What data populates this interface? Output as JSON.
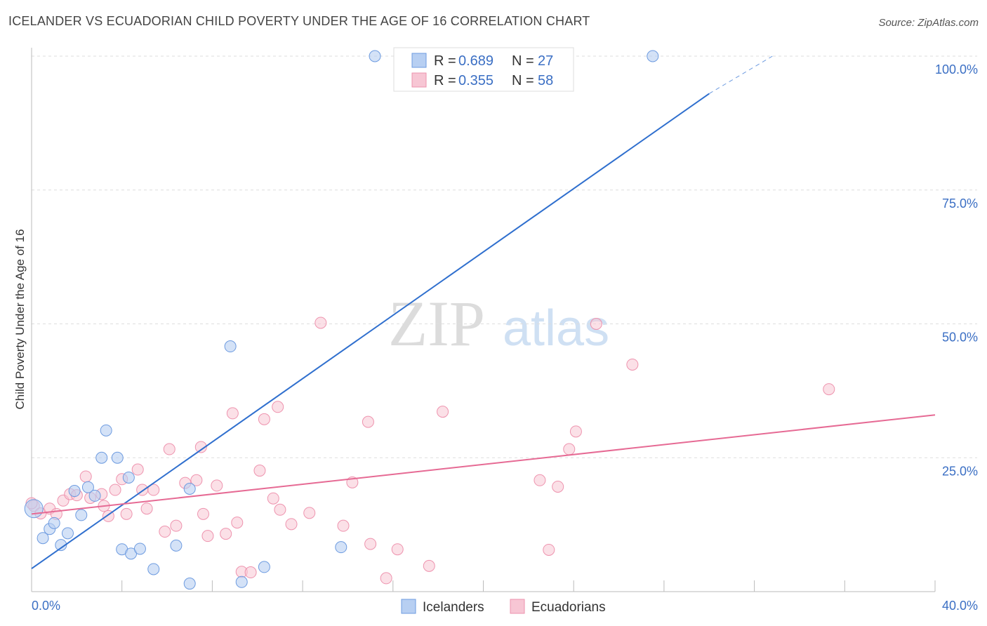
{
  "header": {
    "title": "ICELANDER VS ECUADORIAN CHILD POVERTY UNDER THE AGE OF 16 CORRELATION CHART",
    "source": "Source: ZipAtlas.com"
  },
  "watermark": {
    "zip": "ZIP",
    "atlas": "atlas"
  },
  "colors": {
    "blue_fill": "#b7cff2",
    "blue_stroke": "#6d9be0",
    "blue_line": "#2f6fce",
    "pink_fill": "#f7c6d4",
    "pink_stroke": "#ee93ae",
    "pink_line": "#e66a94",
    "grid": "#dddddd",
    "tick_text": "#3b6fc4"
  },
  "chart_data": {
    "type": "scatter",
    "title": "ICELANDER VS ECUADORIAN CHILD POVERTY UNDER THE AGE OF 16 CORRELATION CHART",
    "xlabel": "",
    "ylabel": "Child Poverty Under the Age of 16",
    "xlim": [
      0,
      40
    ],
    "ylim": [
      0,
      100
    ],
    "x_tick_labels": [
      "0.0%",
      "40.0%"
    ],
    "y_ticks": [
      25,
      50,
      75,
      100
    ],
    "y_tick_labels": [
      "25.0%",
      "50.0%",
      "75.0%",
      "100.0%"
    ],
    "legend": [
      {
        "r_label": "R = ",
        "r_value": "0.689",
        "n_label": "N = ",
        "n_value": "27"
      },
      {
        "r_label": "R = ",
        "r_value": "0.355",
        "n_label": "N = ",
        "n_value": "58"
      }
    ],
    "series": [
      {
        "name": "Icelanders",
        "color": "#b7cff2",
        "trend": {
          "x0": 0,
          "y0": 4.3,
          "x1": 30.0,
          "y1": 93.0,
          "dash_to_x": 32.8,
          "dash_to_y": 100.0
        },
        "points": [
          [
            0.1,
            15.5
          ],
          [
            0.5,
            10.0
          ],
          [
            0.8,
            11.7
          ],
          [
            1.0,
            12.8
          ],
          [
            1.3,
            8.7
          ],
          [
            1.6,
            10.9
          ],
          [
            1.9,
            18.8
          ],
          [
            2.2,
            14.3
          ],
          [
            2.5,
            19.5
          ],
          [
            2.8,
            17.9
          ],
          [
            3.1,
            25.0
          ],
          [
            3.3,
            30.1
          ],
          [
            3.8,
            25.0
          ],
          [
            4.0,
            7.9
          ],
          [
            4.3,
            21.3
          ],
          [
            4.4,
            7.1
          ],
          [
            4.8,
            8.0
          ],
          [
            5.4,
            4.2
          ],
          [
            6.4,
            8.6
          ],
          [
            7.0,
            1.5
          ],
          [
            7.0,
            19.2
          ],
          [
            8.8,
            45.8
          ],
          [
            9.3,
            1.8
          ],
          [
            10.3,
            4.6
          ],
          [
            13.7,
            8.3
          ],
          [
            15.2,
            100.0
          ],
          [
            27.5,
            100.0
          ]
        ],
        "point_sizes": {
          "0.1,15.5": 14
        }
      },
      {
        "name": "Ecuadorians",
        "color": "#f7c6d4",
        "trend": {
          "x0": 0,
          "y0": 14.5,
          "x1": 40.0,
          "y1": 33.0
        },
        "points": [
          [
            0.1,
            16.0
          ],
          [
            0.4,
            14.6
          ],
          [
            0.8,
            15.5
          ],
          [
            1.1,
            14.5
          ],
          [
            1.4,
            17.0
          ],
          [
            1.7,
            18.2
          ],
          [
            2.0,
            18.0
          ],
          [
            2.4,
            21.5
          ],
          [
            2.6,
            17.5
          ],
          [
            3.1,
            18.2
          ],
          [
            3.2,
            16.0
          ],
          [
            3.4,
            14.1
          ],
          [
            3.7,
            19.0
          ],
          [
            4.0,
            21.0
          ],
          [
            4.2,
            14.5
          ],
          [
            4.7,
            22.8
          ],
          [
            4.9,
            19.0
          ],
          [
            5.1,
            15.5
          ],
          [
            5.4,
            19.0
          ],
          [
            5.9,
            11.2
          ],
          [
            6.1,
            26.6
          ],
          [
            6.4,
            12.3
          ],
          [
            6.8,
            20.3
          ],
          [
            7.3,
            20.8
          ],
          [
            7.5,
            27.0
          ],
          [
            7.6,
            14.5
          ],
          [
            7.8,
            10.4
          ],
          [
            8.2,
            19.8
          ],
          [
            8.6,
            10.8
          ],
          [
            8.9,
            33.3
          ],
          [
            9.1,
            12.9
          ],
          [
            9.3,
            3.7
          ],
          [
            9.7,
            3.6
          ],
          [
            10.1,
            22.6
          ],
          [
            10.3,
            32.2
          ],
          [
            10.7,
            17.4
          ],
          [
            10.9,
            34.5
          ],
          [
            11.0,
            15.3
          ],
          [
            11.5,
            12.6
          ],
          [
            12.3,
            14.7
          ],
          [
            12.8,
            50.2
          ],
          [
            13.8,
            12.3
          ],
          [
            14.2,
            20.4
          ],
          [
            14.9,
            31.7
          ],
          [
            15.0,
            8.9
          ],
          [
            15.7,
            2.5
          ],
          [
            16.2,
            7.9
          ],
          [
            17.6,
            4.8
          ],
          [
            18.2,
            33.6
          ],
          [
            22.5,
            20.8
          ],
          [
            22.9,
            7.8
          ],
          [
            23.3,
            19.6
          ],
          [
            23.8,
            26.6
          ],
          [
            24.1,
            29.9
          ],
          [
            25.0,
            50.0
          ],
          [
            26.6,
            42.4
          ],
          [
            35.3,
            37.8
          ],
          [
            0.0,
            16.5
          ]
        ]
      }
    ]
  },
  "bottom_legend": {
    "icelanders": "Icelanders",
    "ecuadorians": "Ecuadorians"
  }
}
